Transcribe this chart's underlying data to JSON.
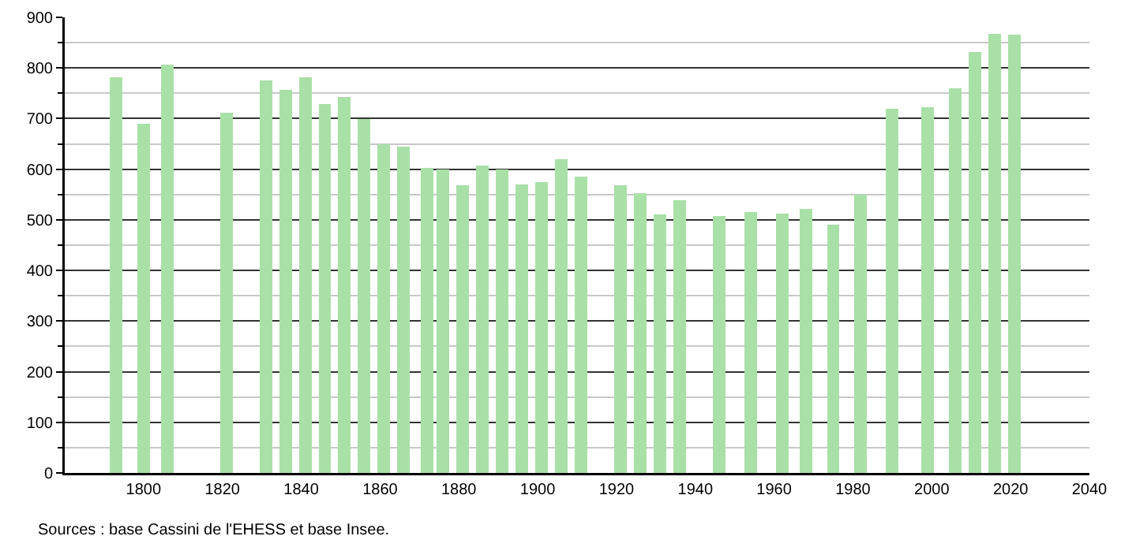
{
  "chart_data": {
    "type": "bar",
    "x": [
      1793,
      1800,
      1806,
      1821,
      1831,
      1836,
      1841,
      1846,
      1851,
      1856,
      1861,
      1866,
      1872,
      1876,
      1881,
      1886,
      1891,
      1896,
      1901,
      1906,
      1911,
      1921,
      1926,
      1931,
      1936,
      1946,
      1954,
      1962,
      1968,
      1975,
      1982,
      1990,
      1999,
      2006,
      2011,
      2016,
      2021
    ],
    "values": [
      781,
      690,
      806,
      712,
      775,
      756,
      781,
      728,
      743,
      699,
      649,
      645,
      603,
      600,
      569,
      608,
      599,
      570,
      575,
      619,
      585,
      569,
      553,
      510,
      538,
      508,
      516,
      513,
      522,
      491,
      550,
      719,
      722,
      760,
      832,
      868,
      865
    ],
    "color": "#a8e0a8",
    "xlim": [
      1780,
      2040
    ],
    "xticks": [
      1800,
      1820,
      1840,
      1860,
      1880,
      1900,
      1920,
      1940,
      1960,
      1980,
      2000,
      2020,
      2040
    ],
    "ylim": [
      0,
      900
    ],
    "yticks": [
      0,
      {
        "value": 50,
        "label": null
      },
      100,
      {
        "value": 150,
        "label": null
      },
      200,
      {
        "value": 250,
        "label": null
      },
      300,
      {
        "value": 350,
        "label": null
      },
      400,
      {
        "value": 450,
        "label": null
      },
      500,
      {
        "value": 550,
        "label": null
      },
      600,
      {
        "value": 650,
        "label": null
      },
      700,
      {
        "value": 750,
        "label": null
      },
      800,
      {
        "value": 850,
        "label": null
      },
      900
    ],
    "grid": "y",
    "annotations": [
      "Sources : base Cassini de l'EHESS et base Insee."
    ]
  }
}
